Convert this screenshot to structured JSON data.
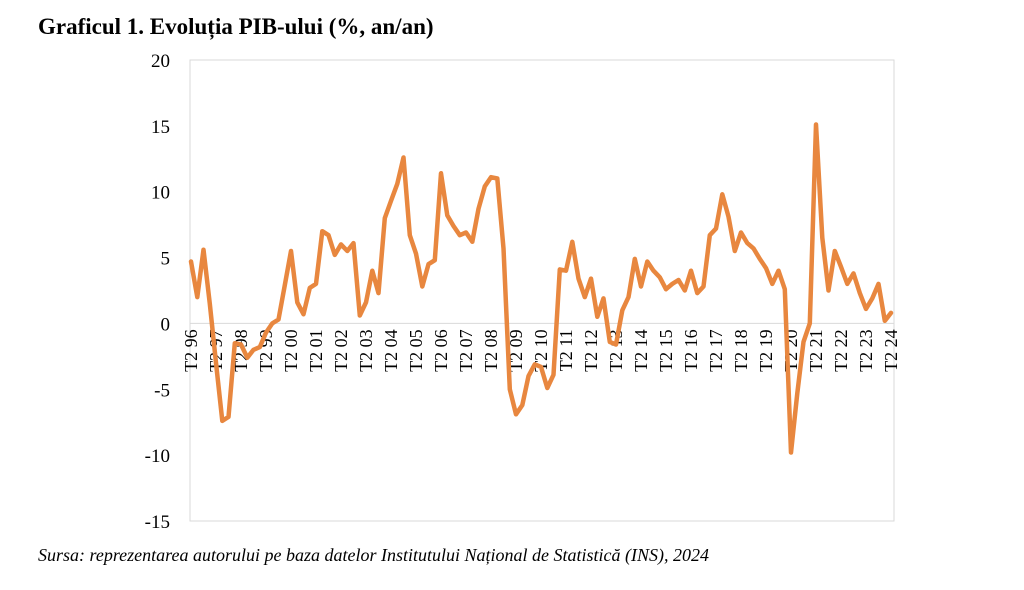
{
  "title": "Graficul 1. Evoluția PIB-ului (%, an/an)",
  "source": "Sursa: reprezentarea autorului pe baza datelor Institutului Național de Statistică (INS), 2024",
  "chart_data": {
    "type": "line",
    "title": "Graficul 1. Evoluția PIB-ului (%, an/an)",
    "ylim": [
      -15,
      20
    ],
    "yticks": [
      -15,
      -10,
      -5,
      0,
      5,
      10,
      15,
      20
    ],
    "grid": false,
    "line_color": "#E8873F",
    "x_tick_labels": [
      "T2 96",
      "T2 97",
      "T2 98",
      "T2 99",
      "T2 00",
      "T2 01",
      "T2 02",
      "T2 03",
      "T2 04",
      "T2 05",
      "T2 06",
      "T2 07",
      "T2 08",
      "T2 09",
      "T2 10",
      "T2 11",
      "T2 12",
      "T2 13",
      "T2 14",
      "T2 15",
      "T2 16",
      "T2 17",
      "T2 18",
      "T2 19",
      "T2 20",
      "T2 21",
      "T2 22",
      "T2 23",
      "T2 24"
    ],
    "series": [
      {
        "values": [
          4.7,
          2.0,
          5.6,
          1.5,
          -3.0,
          -7.4,
          -7.1,
          -1.5,
          -1.6,
          -2.6,
          -2.0,
          -1.8,
          -0.7,
          0.0,
          0.3,
          2.9,
          5.5,
          1.6,
          0.7,
          2.7,
          3.0,
          7.0,
          6.7,
          5.2,
          6.0,
          5.5,
          6.1,
          0.6,
          1.6,
          4.0,
          2.3,
          8.0,
          9.3,
          10.6,
          12.6,
          6.7,
          5.3,
          2.8,
          4.5,
          4.8,
          11.4,
          8.2,
          7.4,
          6.7,
          6.9,
          6.2,
          8.7,
          10.4,
          11.1,
          11.0,
          5.7,
          -5.0,
          -6.9,
          -6.2,
          -4.0,
          -3.1,
          -3.3,
          -4.9,
          -3.9,
          4.1,
          4.0,
          6.2,
          3.4,
          2.0,
          3.4,
          0.5,
          1.9,
          -1.4,
          -1.6,
          1.0,
          2.0,
          4.9,
          2.8,
          4.7,
          4.0,
          3.5,
          2.6,
          3.0,
          3.3,
          2.5,
          4.0,
          2.3,
          2.8,
          6.7,
          7.2,
          9.8,
          8.1,
          5.5,
          6.9,
          6.1,
          5.7,
          4.9,
          4.2,
          3.0,
          4.0,
          2.6,
          -9.8,
          -5.3,
          -1.4,
          0.0,
          15.1,
          6.5,
          2.5,
          5.5,
          4.3,
          3.0,
          3.8,
          2.3,
          1.1,
          1.9,
          3.0,
          0.2,
          0.8
        ]
      }
    ]
  }
}
